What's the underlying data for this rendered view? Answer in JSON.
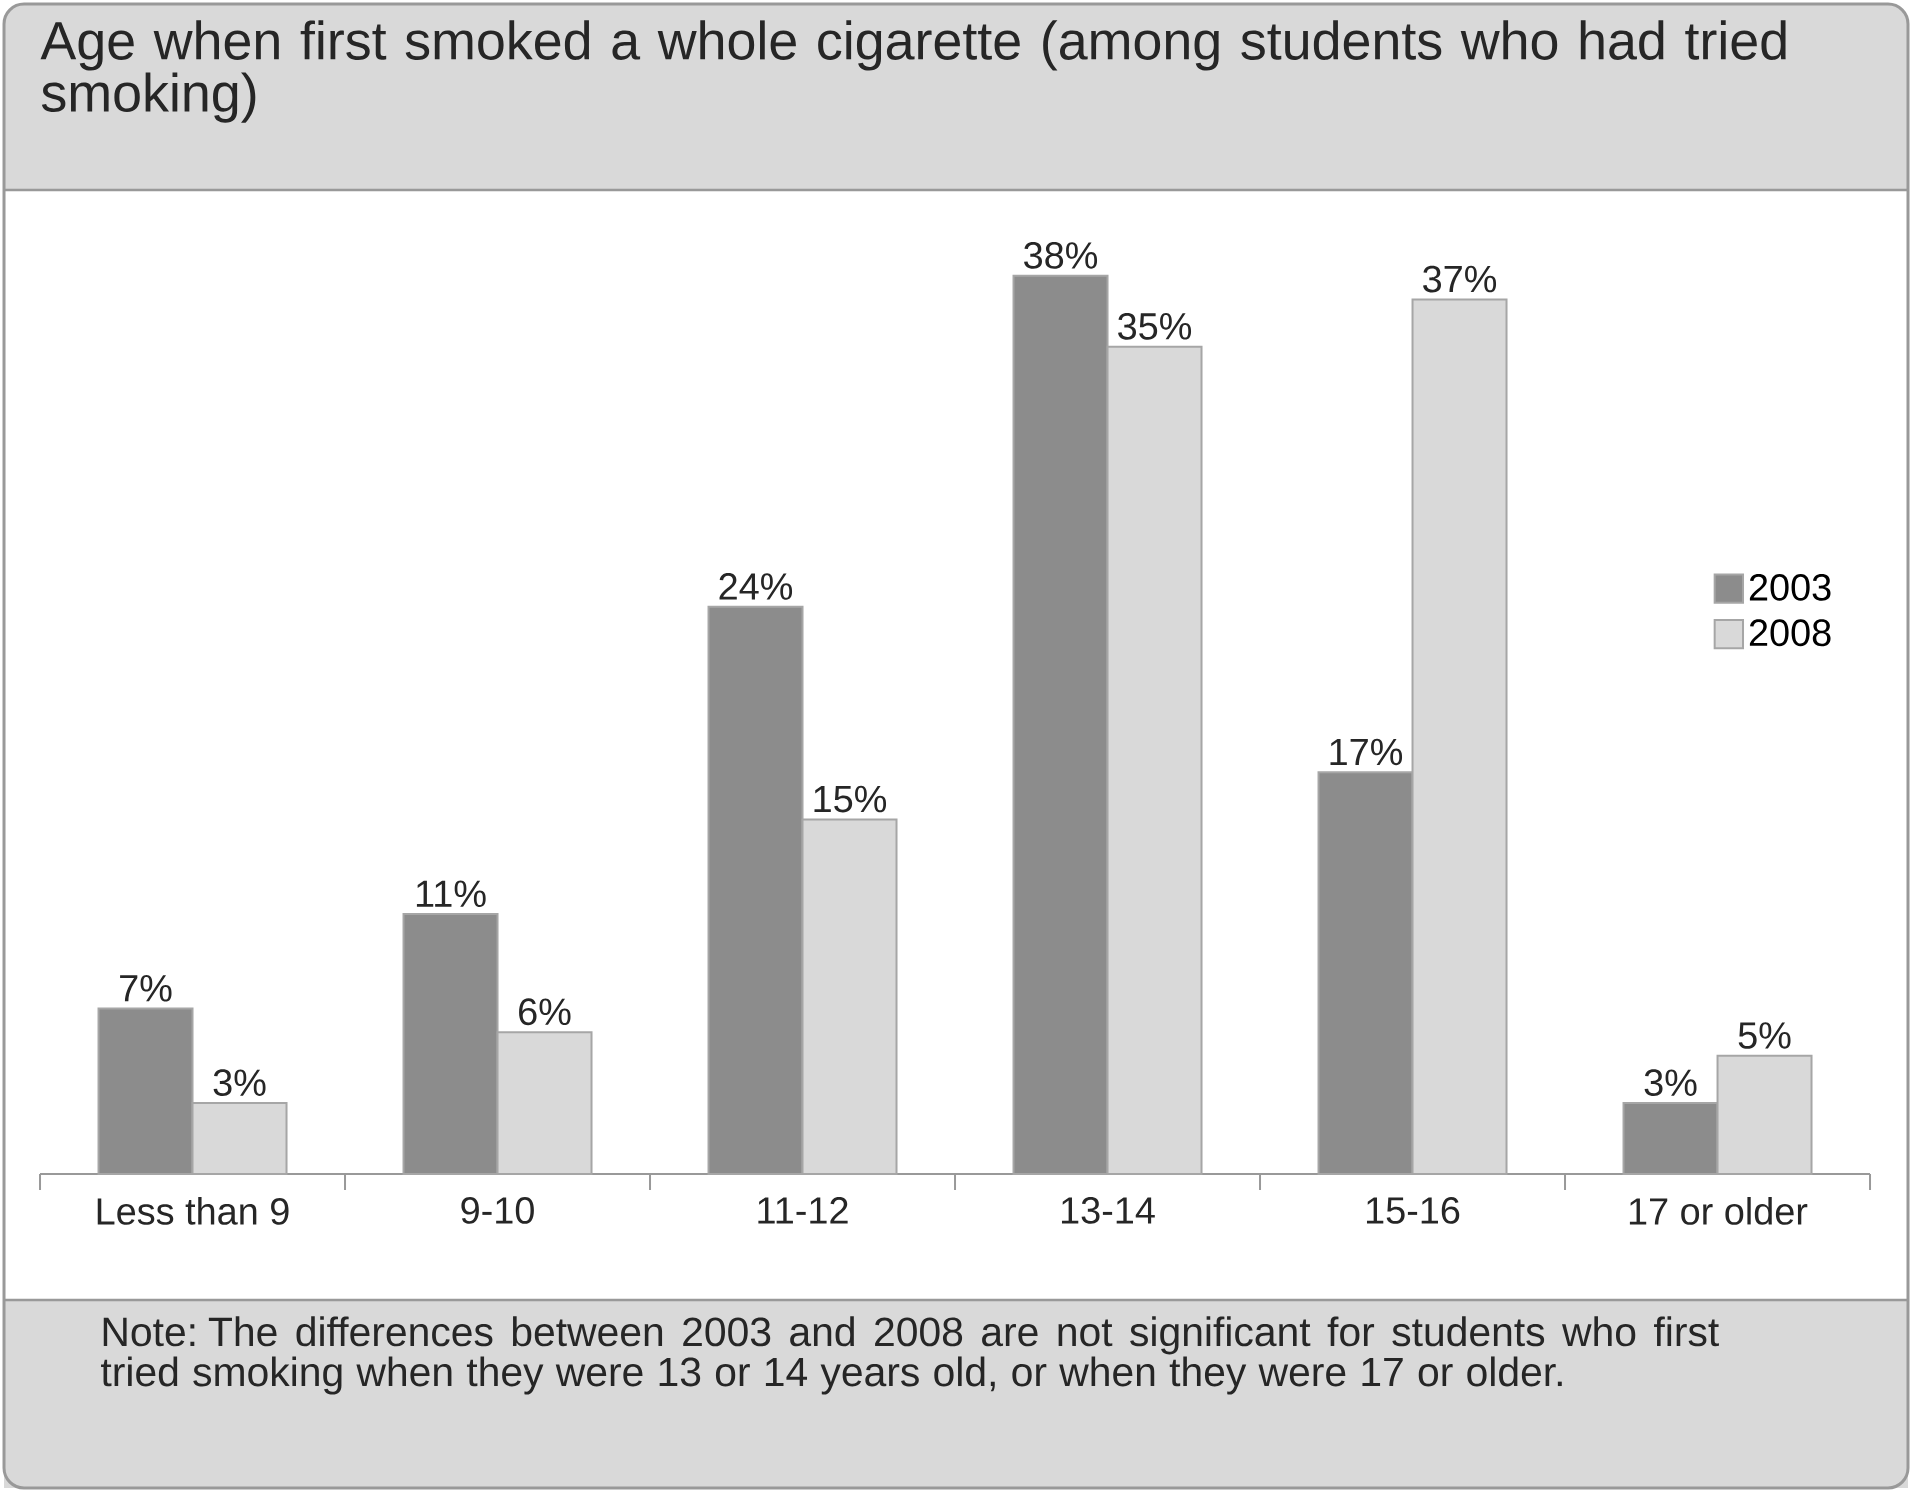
{
  "chart_data": {
    "type": "bar",
    "title": "Age when first smoked a whole cigarette (among students who had tried smoking)",
    "categories": [
      "Less than 9",
      "9-10",
      "11-12",
      "13-14",
      "15-16",
      "17 or older"
    ],
    "series": [
      {
        "name": "2003",
        "color": "#8c8c8c",
        "values": [
          7,
          11,
          24,
          38,
          17,
          3
        ],
        "value_labels": [
          "7%",
          "11%",
          "24%",
          "38%",
          "17%",
          "3%"
        ]
      },
      {
        "name": "2008",
        "color": "#d9d9d9",
        "values": [
          3,
          6,
          15,
          35,
          37,
          5
        ],
        "value_labels": [
          "3%",
          "6%",
          "15%",
          "35%",
          "37%",
          "5%"
        ]
      }
    ],
    "legend": "right",
    "annotations": [
      "Note: The differences between 2003 and 2008 are not significant for students who first tried smoking when they were 13 or 14 years old, or when they were 17 or older."
    ]
  }
}
